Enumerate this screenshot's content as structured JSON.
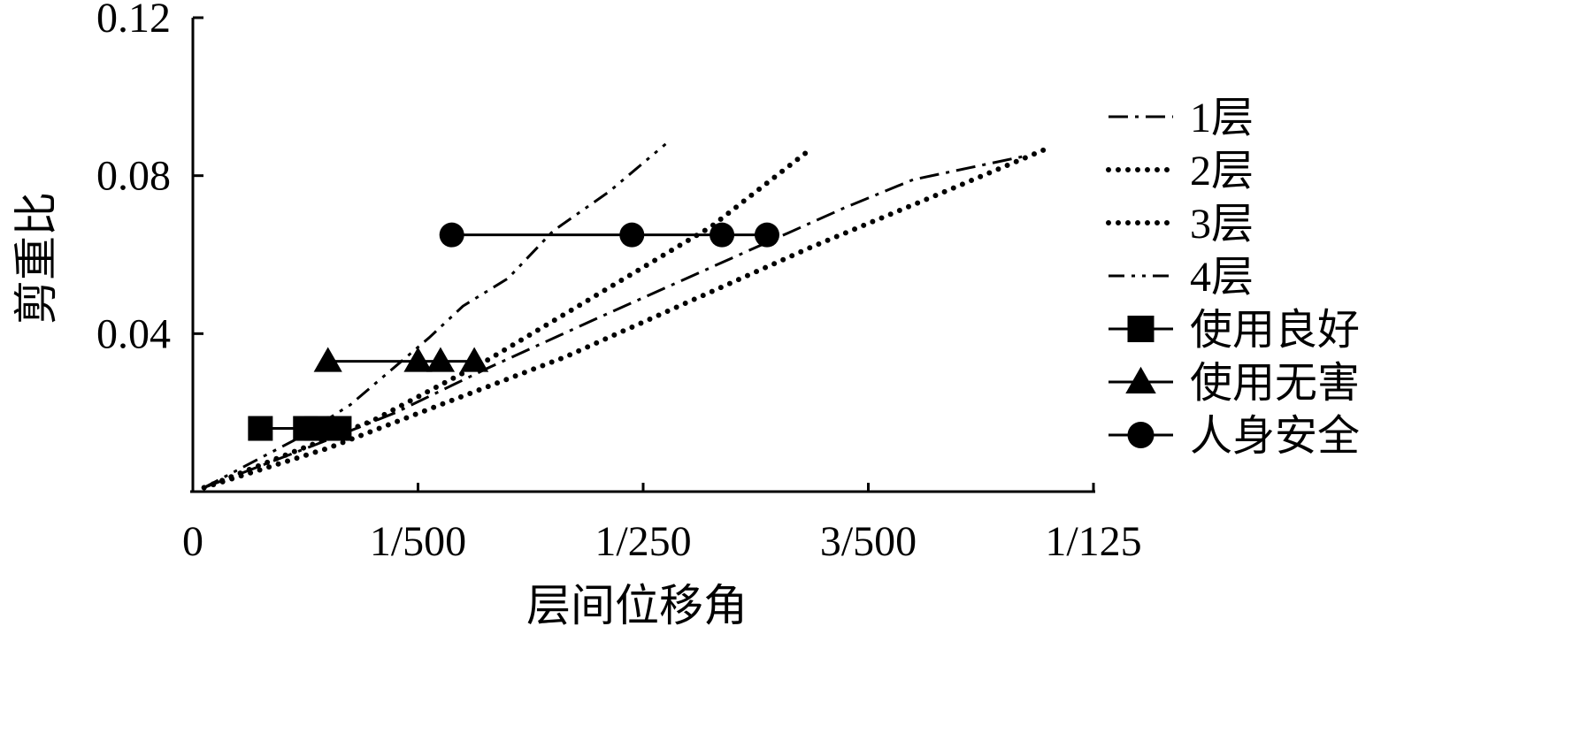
{
  "chart_data": {
    "type": "line",
    "xlabel": "层间位移角",
    "ylabel": "剪重比",
    "xlim": [
      0,
      0.008
    ],
    "ylim": [
      0,
      0.12
    ],
    "x_ticks": [
      0,
      0.002,
      0.004,
      0.006,
      0.008
    ],
    "x_tick_labels": [
      "0",
      "1/500",
      "1/250",
      "3/500",
      "1/125"
    ],
    "y_ticks": [
      0.04,
      0.08,
      0.12
    ],
    "y_tick_labels": [
      "0.04",
      "0.08",
      "0.12"
    ],
    "grid": false,
    "legend_position": "right",
    "series": [
      {
        "name": "1层",
        "style": "dash-dot",
        "points": [
          [
            0.0001,
            0.001
          ],
          [
            0.0011,
            0.012
          ],
          [
            0.0018,
            0.02
          ],
          [
            0.0026,
            0.031
          ],
          [
            0.0036,
            0.044
          ],
          [
            0.0047,
            0.058
          ],
          [
            0.0058,
            0.072
          ],
          [
            0.0064,
            0.079
          ],
          [
            0.0069,
            0.082
          ],
          [
            0.0074,
            0.085
          ]
        ]
      },
      {
        "name": "2层",
        "style": "dotted",
        "points": [
          [
            0.0001,
            0.001
          ],
          [
            0.0008,
            0.009
          ],
          [
            0.0016,
            0.018
          ],
          [
            0.0026,
            0.033
          ],
          [
            0.0036,
            0.05
          ],
          [
            0.0046,
            0.067
          ],
          [
            0.0055,
            0.087
          ]
        ]
      },
      {
        "name": "3层",
        "style": "dotted",
        "points": [
          [
            0.0001,
            0.001
          ],
          [
            0.0012,
            0.011
          ],
          [
            0.0022,
            0.022
          ],
          [
            0.0033,
            0.034
          ],
          [
            0.0044,
            0.048
          ],
          [
            0.0055,
            0.062
          ],
          [
            0.0066,
            0.075
          ],
          [
            0.0076,
            0.087
          ]
        ]
      },
      {
        "name": "4层",
        "style": "dash-dot-dot",
        "points": [
          [
            0.0001,
            0.001
          ],
          [
            0.0009,
            0.013
          ],
          [
            0.0014,
            0.022
          ],
          [
            0.0021,
            0.039
          ],
          [
            0.0024,
            0.047
          ],
          [
            0.0028,
            0.054
          ],
          [
            0.0032,
            0.066
          ],
          [
            0.0037,
            0.076
          ],
          [
            0.0042,
            0.088
          ]
        ]
      }
    ],
    "performance_levels": [
      {
        "name": "使用良好",
        "marker": "square",
        "y": 0.016,
        "x": [
          0.0006,
          0.001,
          0.0011,
          0.0013
        ]
      },
      {
        "name": "使用无害",
        "marker": "triangle",
        "y": 0.033,
        "x": [
          0.0012,
          0.002,
          0.0022,
          0.0025
        ]
      },
      {
        "name": "人身安全",
        "marker": "circle",
        "y": 0.065,
        "x": [
          0.0023,
          0.0039,
          0.0047,
          0.0051
        ]
      }
    ]
  }
}
